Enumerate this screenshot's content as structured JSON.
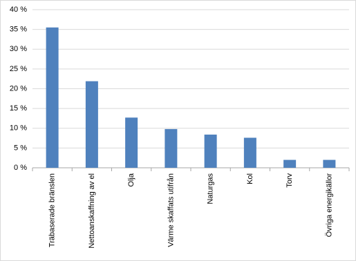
{
  "chart_data": {
    "type": "bar",
    "categories": [
      "Träbaserade bränslen",
      "Nettoanskaffning av el",
      "Olja",
      "Värme skaffats utifrån",
      "Naturgas",
      "Kol",
      "Torv",
      "Övriga energikällor"
    ],
    "values": [
      35.5,
      21.9,
      12.7,
      9.8,
      8.4,
      7.6,
      2.0,
      2.0
    ],
    "color": "#4f81bd",
    "ylim": [
      0,
      40
    ],
    "yticks": [
      {
        "value": 0,
        "label": "0 %"
      },
      {
        "value": 5,
        "label": "5 %"
      },
      {
        "value": 10,
        "label": "10 %"
      },
      {
        "value": 15,
        "label": "15 %"
      },
      {
        "value": 20,
        "label": "20 %"
      },
      {
        "value": 25,
        "label": "25 %"
      },
      {
        "value": 30,
        "label": "30 %"
      },
      {
        "value": 35,
        "label": "35 %"
      },
      {
        "value": 40,
        "label": "40 %"
      }
    ],
    "grid": true
  }
}
